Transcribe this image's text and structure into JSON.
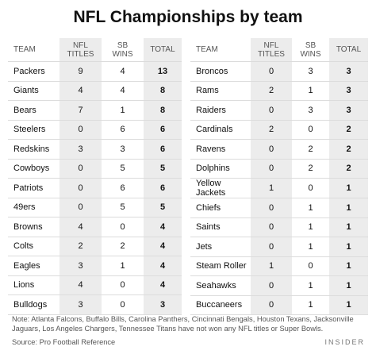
{
  "title": "NFL Championships by team",
  "headers": {
    "team": "TEAM",
    "nfl_titles": [
      "NFL",
      "TITLES"
    ],
    "sb_wins": [
      "SB",
      "WINS"
    ],
    "total": "TOTAL"
  },
  "left_table": [
    {
      "team": "Packers",
      "nfl": "9",
      "sb": "4",
      "total": "13"
    },
    {
      "team": "Giants",
      "nfl": "4",
      "sb": "4",
      "total": "8"
    },
    {
      "team": "Bears",
      "nfl": "7",
      "sb": "1",
      "total": "8"
    },
    {
      "team": "Steelers",
      "nfl": "0",
      "sb": "6",
      "total": "6"
    },
    {
      "team": "Redskins",
      "nfl": "3",
      "sb": "3",
      "total": "6"
    },
    {
      "team": "Cowboys",
      "nfl": "0",
      "sb": "5",
      "total": "5"
    },
    {
      "team": "Patriots",
      "nfl": "0",
      "sb": "6",
      "total": "6"
    },
    {
      "team": "49ers",
      "nfl": "0",
      "sb": "5",
      "total": "5"
    },
    {
      "team": "Browns",
      "nfl": "4",
      "sb": "0",
      "total": "4"
    },
    {
      "team": "Colts",
      "nfl": "2",
      "sb": "2",
      "total": "4"
    },
    {
      "team": "Eagles",
      "nfl": "3",
      "sb": "1",
      "total": "4"
    },
    {
      "team": "Lions",
      "nfl": "4",
      "sb": "0",
      "total": "4"
    },
    {
      "team": "Bulldogs",
      "nfl": "3",
      "sb": "0",
      "total": "3"
    }
  ],
  "right_table": [
    {
      "team": "Broncos",
      "nfl": "0",
      "sb": "3",
      "total": "3"
    },
    {
      "team": "Rams",
      "nfl": "2",
      "sb": "1",
      "total": "3"
    },
    {
      "team": "Raiders",
      "nfl": "0",
      "sb": "3",
      "total": "3"
    },
    {
      "team": "Cardinals",
      "nfl": "2",
      "sb": "0",
      "total": "2"
    },
    {
      "team": "Ravens",
      "nfl": "0",
      "sb": "2",
      "total": "2"
    },
    {
      "team": "Dolphins",
      "nfl": "0",
      "sb": "2",
      "total": "2"
    },
    {
      "team": "Yellow Jackets",
      "nfl": "1",
      "sb": "0",
      "total": "1"
    },
    {
      "team": "Chiefs",
      "nfl": "0",
      "sb": "1",
      "total": "1"
    },
    {
      "team": "Saints",
      "nfl": "0",
      "sb": "1",
      "total": "1"
    },
    {
      "team": "Jets",
      "nfl": "0",
      "sb": "1",
      "total": "1"
    },
    {
      "team": "Steam Roller",
      "nfl": "1",
      "sb": "0",
      "total": "1"
    },
    {
      "team": "Seahawks",
      "nfl": "0",
      "sb": "1",
      "total": "1"
    },
    {
      "team": "Buccaneers",
      "nfl": "0",
      "sb": "1",
      "total": "1"
    }
  ],
  "note": "Note: Atlanta Falcons, Buffalo Bills, Carolina Panthers, Cincinnati Bengals, Houston Texans, Jacksonville Jaguars, Los Angeles Chargers, Tennessee Titans have not won any NFL titles or Super Bowls.",
  "source": "Source: Pro Football Reference",
  "brand": "INSIDER"
}
